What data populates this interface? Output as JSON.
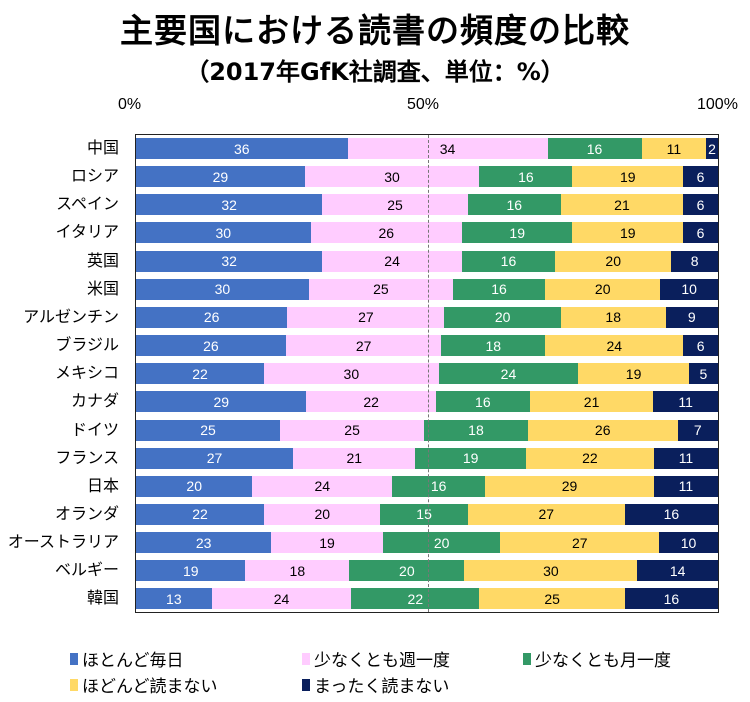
{
  "chart_data": {
    "type": "bar",
    "orientation": "horizontal-stacked-100",
    "title": "主要国における読書の頻度の比較",
    "subtitle": "（2017年GfK社調査、単位：%）",
    "xlabel": "",
    "ylabel": "",
    "xlim": [
      0,
      100
    ],
    "x_ticks": [
      "0%",
      "50%",
      "100%"
    ],
    "grid": "dashed line at 50%",
    "legend_position": "bottom",
    "categories": [
      "中国",
      "ロシア",
      "スペイン",
      "イタリア",
      "英国",
      "米国",
      "アルゼンチン",
      "ブラジル",
      "メキシコ",
      "カナダ",
      "ドイツ",
      "フランス",
      "日本",
      "オランダ",
      "オーストラリア",
      "ベルギー",
      "韓国"
    ],
    "series": [
      {
        "name": "ほとんど毎日",
        "color": "#4472C4",
        "text_color": "#ffffff",
        "values": [
          36,
          29,
          32,
          30,
          32,
          30,
          26,
          26,
          22,
          29,
          25,
          27,
          20,
          22,
          23,
          19,
          13
        ]
      },
      {
        "name": "少なくとも週一度",
        "color": "#FFCCFF",
        "text_color": "#000000",
        "values": [
          34,
          30,
          25,
          26,
          24,
          25,
          27,
          27,
          30,
          22,
          25,
          21,
          24,
          20,
          19,
          18,
          24
        ]
      },
      {
        "name": "少なくとも月一度",
        "color": "#339966",
        "text_color": "#ffffff",
        "values": [
          16,
          16,
          16,
          19,
          16,
          16,
          20,
          18,
          24,
          16,
          18,
          19,
          16,
          15,
          20,
          20,
          22
        ]
      },
      {
        "name": "ほどんど読まない",
        "color": "#FFD966",
        "text_color": "#000000",
        "values": [
          11,
          19,
          21,
          19,
          20,
          20,
          18,
          24,
          19,
          21,
          26,
          22,
          29,
          27,
          27,
          30,
          25
        ]
      },
      {
        "name": "まったく読まない",
        "color": "#0A1F5C",
        "text_color": "#ffffff",
        "values": [
          2,
          6,
          6,
          6,
          8,
          10,
          9,
          6,
          5,
          11,
          7,
          11,
          11,
          16,
          10,
          14,
          16
        ]
      }
    ]
  }
}
